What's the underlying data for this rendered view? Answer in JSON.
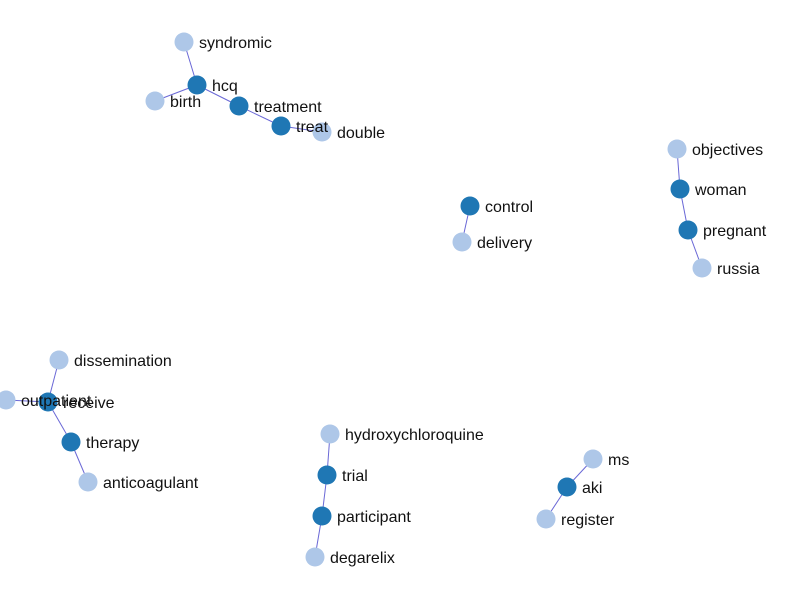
{
  "colors": {
    "primary_node": "#1f77b4",
    "secondary_node": "#aec7e8",
    "edge": "#6a68d6",
    "label": "#111111"
  },
  "nodes": [
    {
      "id": "syndromic",
      "label": "syndromic",
      "kind": "secondary"
    },
    {
      "id": "hcq",
      "label": "hcq",
      "kind": "primary"
    },
    {
      "id": "birth",
      "label": "birth",
      "kind": "secondary"
    },
    {
      "id": "treatment",
      "label": "treatment",
      "kind": "primary"
    },
    {
      "id": "treat",
      "label": "treat",
      "kind": "primary"
    },
    {
      "id": "double",
      "label": "double",
      "kind": "secondary"
    },
    {
      "id": "objectives",
      "label": "objectives",
      "kind": "secondary"
    },
    {
      "id": "woman",
      "label": "woman",
      "kind": "primary"
    },
    {
      "id": "pregnant",
      "label": "pregnant",
      "kind": "primary"
    },
    {
      "id": "russia",
      "label": "russia",
      "kind": "secondary"
    },
    {
      "id": "control",
      "label": "control",
      "kind": "primary"
    },
    {
      "id": "delivery",
      "label": "delivery",
      "kind": "secondary"
    },
    {
      "id": "dissemination",
      "label": "dissemination",
      "kind": "secondary"
    },
    {
      "id": "outpatient",
      "label": "outpatient",
      "kind": "secondary"
    },
    {
      "id": "receive",
      "label": "receive",
      "kind": "primary"
    },
    {
      "id": "therapy",
      "label": "therapy",
      "kind": "primary"
    },
    {
      "id": "anticoagulant",
      "label": "anticoagulant",
      "kind": "secondary"
    },
    {
      "id": "hydroxychloroquine",
      "label": "hydroxychloroquine",
      "kind": "secondary"
    },
    {
      "id": "trial",
      "label": "trial",
      "kind": "primary"
    },
    {
      "id": "participant",
      "label": "participant",
      "kind": "primary"
    },
    {
      "id": "degarelix",
      "label": "degarelix",
      "kind": "secondary"
    },
    {
      "id": "ms",
      "label": "ms",
      "kind": "secondary"
    },
    {
      "id": "aki",
      "label": "aki",
      "kind": "primary"
    },
    {
      "id": "register",
      "label": "register",
      "kind": "secondary"
    }
  ],
  "edges": [
    [
      "syndromic",
      "hcq"
    ],
    [
      "hcq",
      "birth"
    ],
    [
      "hcq",
      "treatment"
    ],
    [
      "treatment",
      "treat"
    ],
    [
      "treat",
      "double"
    ],
    [
      "objectives",
      "woman"
    ],
    [
      "woman",
      "pregnant"
    ],
    [
      "pregnant",
      "russia"
    ],
    [
      "control",
      "delivery"
    ],
    [
      "dissemination",
      "receive"
    ],
    [
      "outpatient",
      "receive"
    ],
    [
      "receive",
      "therapy"
    ],
    [
      "therapy",
      "anticoagulant"
    ],
    [
      "hydroxychloroquine",
      "trial"
    ],
    [
      "trial",
      "participant"
    ],
    [
      "participant",
      "degarelix"
    ],
    [
      "ms",
      "aki"
    ],
    [
      "aki",
      "register"
    ]
  ]
}
